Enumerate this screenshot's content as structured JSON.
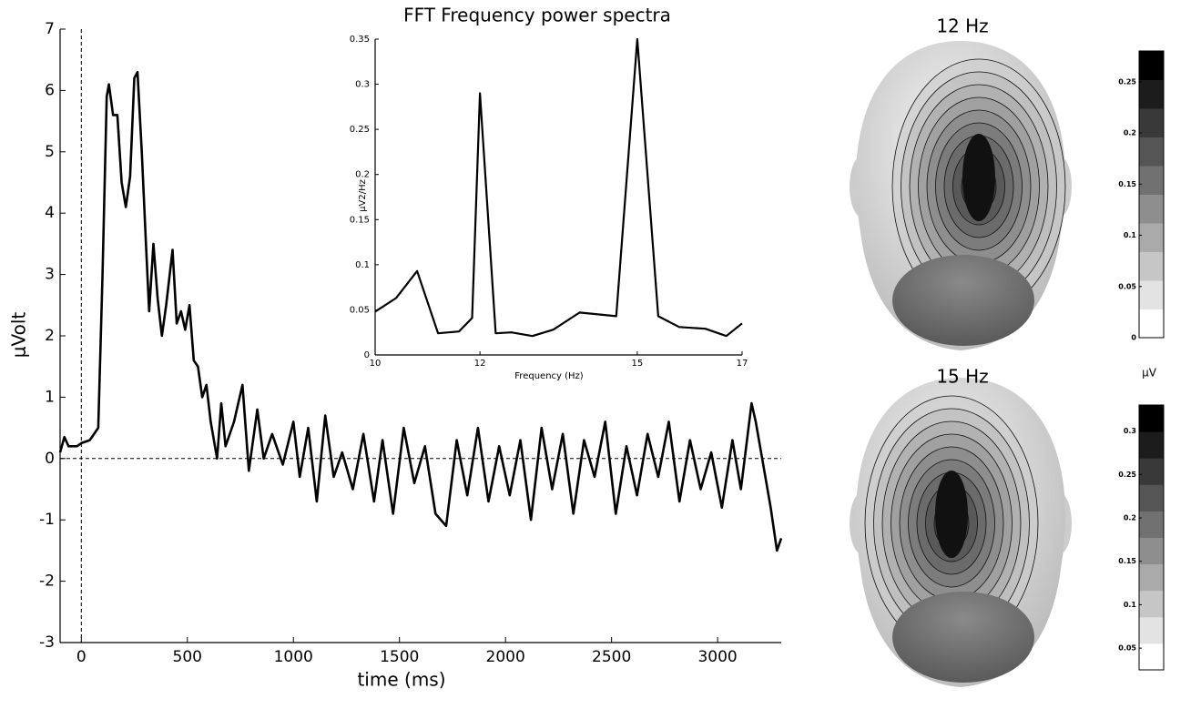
{
  "chart_data": [
    {
      "type": "line",
      "xlabel": "time (ms)",
      "ylabel": "μVolt",
      "color": "#000000",
      "xlim": [
        -100,
        3300
      ],
      "ylim": [
        -3,
        7
      ],
      "xticks": [
        0,
        500,
        1000,
        1500,
        2000,
        2500,
        3000
      ],
      "yticks": [
        -3,
        -2,
        -1,
        0,
        1,
        2,
        3,
        4,
        5,
        6,
        7
      ],
      "reference_x": 0,
      "reference_y": 0,
      "x": [
        -100,
        -80,
        -60,
        -20,
        0,
        40,
        60,
        80,
        100,
        120,
        130,
        150,
        170,
        190,
        210,
        230,
        250,
        265,
        285,
        305,
        320,
        340,
        360,
        380,
        400,
        430,
        450,
        470,
        490,
        510,
        530,
        550,
        570,
        590,
        610,
        640,
        660,
        680,
        720,
        760,
        790,
        830,
        860,
        900,
        950,
        1000,
        1030,
        1070,
        1110,
        1150,
        1190,
        1230,
        1280,
        1330,
        1380,
        1420,
        1470,
        1520,
        1570,
        1620,
        1670,
        1720,
        1770,
        1820,
        1870,
        1920,
        1970,
        2020,
        2070,
        2120,
        2170,
        2220,
        2270,
        2320,
        2370,
        2420,
        2470,
        2520,
        2570,
        2620,
        2670,
        2720,
        2770,
        2820,
        2870,
        2920,
        2970,
        3020,
        3070,
        3110,
        3160,
        3180,
        3220,
        3250,
        3280,
        3300
      ],
      "values": [
        0.1,
        0.35,
        0.2,
        0.2,
        0.25,
        0.3,
        0.4,
        0.5,
        3,
        5.9,
        6.1,
        5.6,
        5.6,
        4.5,
        4.1,
        4.6,
        6.2,
        6.3,
        5.0,
        3.5,
        2.4,
        3.5,
        2.6,
        2.0,
        2.5,
        3.4,
        2.2,
        2.4,
        2.1,
        2.5,
        1.6,
        1.5,
        1.0,
        1.2,
        0.6,
        0.0,
        0.9,
        0.2,
        0.6,
        1.2,
        -0.2,
        0.8,
        0.0,
        0.4,
        -0.1,
        0.6,
        -0.3,
        0.5,
        -0.7,
        0.7,
        -0.3,
        0.1,
        -0.5,
        0.4,
        -0.7,
        0.3,
        -0.9,
        0.5,
        -0.4,
        0.2,
        -0.9,
        -1.1,
        0.3,
        -0.6,
        0.5,
        -0.7,
        0.2,
        -0.6,
        0.3,
        -1.0,
        0.5,
        -0.5,
        0.4,
        -0.9,
        0.3,
        -0.3,
        0.6,
        -0.9,
        0.2,
        -0.6,
        0.4,
        -0.3,
        0.6,
        -0.7,
        0.3,
        -0.5,
        0.1,
        -0.8,
        0.3,
        -0.5,
        0.9,
        0.6,
        -0.2,
        -0.8,
        -1.5,
        -1.3
      ]
    },
    {
      "type": "line",
      "title": "FFT Frequency power spectra",
      "xlabel": "Frequency (Hz)",
      "ylabel": "μV2/Hz",
      "color": "#000000",
      "xlim": [
        10,
        17
      ],
      "ylim": [
        0,
        0.35
      ],
      "xticks": [
        10,
        12,
        15,
        17
      ],
      "yticks": [
        0,
        0.05,
        0.1,
        0.15,
        0.2,
        0.25,
        0.3,
        0.35
      ],
      "x": [
        10,
        10.4,
        10.8,
        11.2,
        11.6,
        11.85,
        12,
        12.3,
        12.6,
        13,
        13.4,
        13.9,
        14.6,
        15,
        15.4,
        15.8,
        16.3,
        16.7,
        17
      ],
      "values": [
        0.048,
        0.063,
        0.093,
        0.024,
        0.026,
        0.041,
        0.29,
        0.024,
        0.025,
        0.021,
        0.028,
        0.047,
        0.043,
        0.35,
        0.043,
        0.031,
        0.029,
        0.021,
        0.035
      ]
    },
    {
      "type": "topomap",
      "title": "12 Hz",
      "clim": [
        0,
        0.28
      ],
      "cticks": [
        0,
        0.05,
        0.1,
        0.15,
        0.2,
        0.25
      ],
      "unit_label": "μV"
    },
    {
      "type": "topomap",
      "title": "15 Hz",
      "clim": [
        0.025,
        0.33
      ],
      "cticks": [
        0.05,
        0.1,
        0.15,
        0.2,
        0.25,
        0.3
      ]
    }
  ]
}
